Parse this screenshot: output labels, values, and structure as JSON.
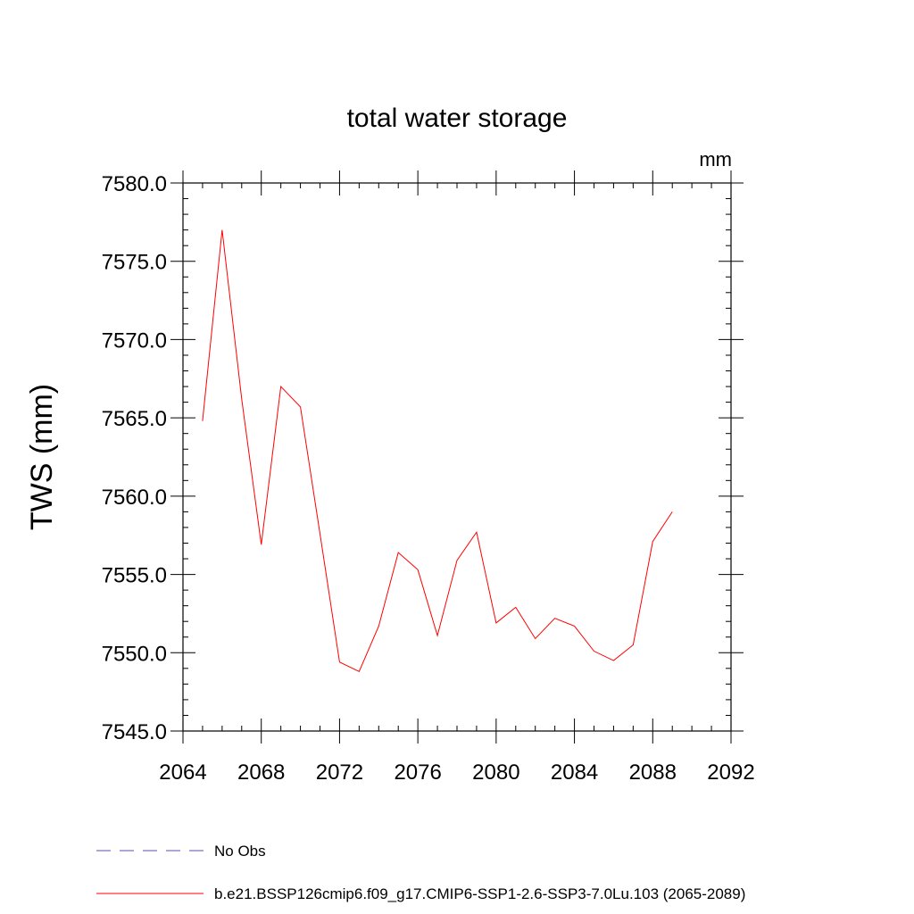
{
  "chart_data": {
    "type": "line",
    "title": "total water storage",
    "units_label": "mm",
    "xlabel": "",
    "ylabel": "TWS  (mm)",
    "xlim": [
      2064,
      2092
    ],
    "ylim": [
      7545.0,
      7580.0
    ],
    "x_ticks": [
      2064,
      2068,
      2072,
      2076,
      2080,
      2084,
      2088,
      2092
    ],
    "x_tick_labels": [
      "2064",
      "2068",
      "2072",
      "2076",
      "2080",
      "2084",
      "2088",
      "2092"
    ],
    "y_ticks": [
      7545.0,
      7550.0,
      7555.0,
      7560.0,
      7565.0,
      7570.0,
      7575.0,
      7580.0
    ],
    "y_tick_labels": [
      "7545.0",
      "7550.0",
      "7555.0",
      "7560.0",
      "7565.0",
      "7570.0",
      "7575.0",
      "7580.0"
    ],
    "grid": false,
    "legend_position": "bottom",
    "series": [
      {
        "name": "b.e21.BSSP126cmip6.f09_g17.CMIP6-SSP1-2.6-SSP3-7.0Lu.103 (2065-2089)",
        "color": "#ff0000",
        "style": "solid",
        "x": [
          2065,
          2066,
          2067,
          2068,
          2069,
          2070,
          2071,
          2072,
          2073,
          2074,
          2075,
          2076,
          2077,
          2078,
          2079,
          2080,
          2081,
          2082,
          2083,
          2084,
          2085,
          2086,
          2087,
          2088,
          2089
        ],
        "values": [
          7564.8,
          7577.0,
          7566.2,
          7556.9,
          7567.0,
          7565.7,
          7557.6,
          7549.4,
          7548.8,
          7551.7,
          7556.4,
          7555.3,
          7551.1,
          7555.9,
          7557.7,
          7551.9,
          7552.9,
          7550.9,
          7552.2,
          7551.7,
          7550.1,
          7549.5,
          7550.5,
          7557.1,
          7559.0
        ]
      }
    ],
    "legend": [
      {
        "label": "No Obs",
        "color": "#5a4fb0",
        "style": "dashed"
      },
      {
        "label": "b.e21.BSSP126cmip6.f09_g17.CMIP6-SSP1-2.6-SSP3-7.0Lu.103 (2065-2089)",
        "color": "#ff0000",
        "style": "solid"
      }
    ]
  }
}
